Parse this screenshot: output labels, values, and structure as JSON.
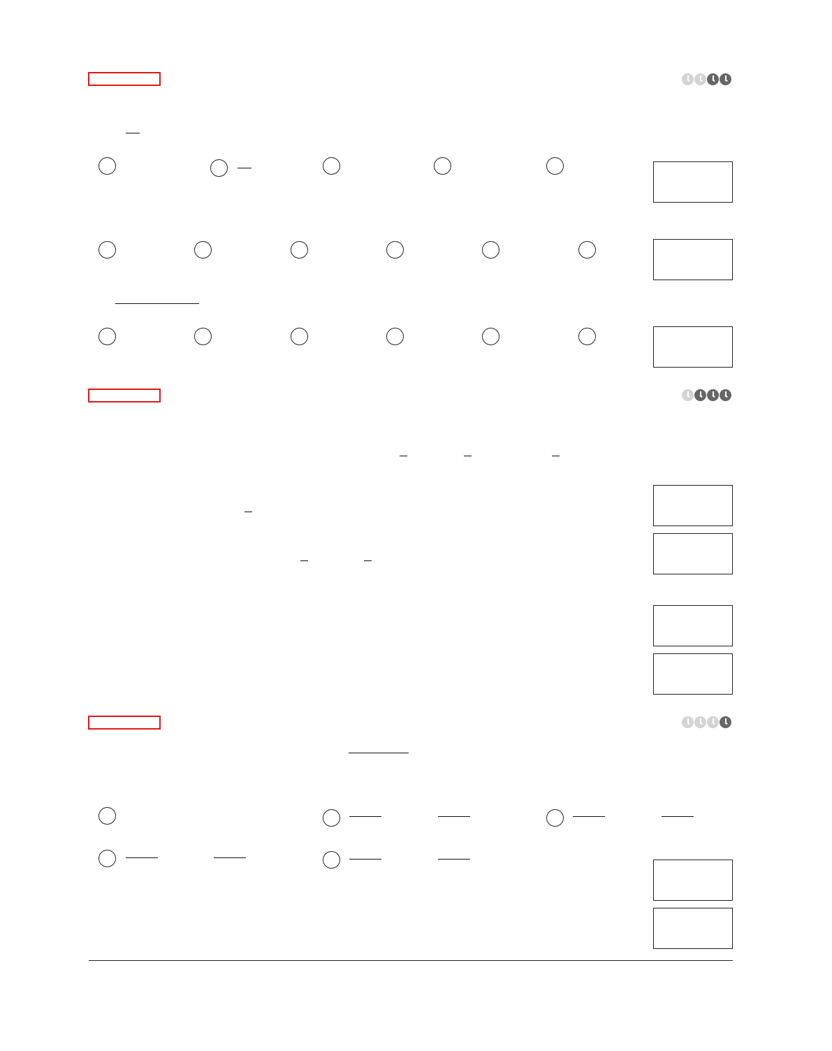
{
  "sections": [
    {
      "difficulty": 2,
      "difficulty_max": 4
    },
    {
      "difficulty": 3,
      "difficulty_max": 4
    },
    {
      "difficulty": 1,
      "difficulty_max": 4
    }
  ],
  "colors": {
    "section_tag": "#e01818",
    "difficulty_on": "#666666",
    "difficulty_off": "#d4d4d4"
  }
}
